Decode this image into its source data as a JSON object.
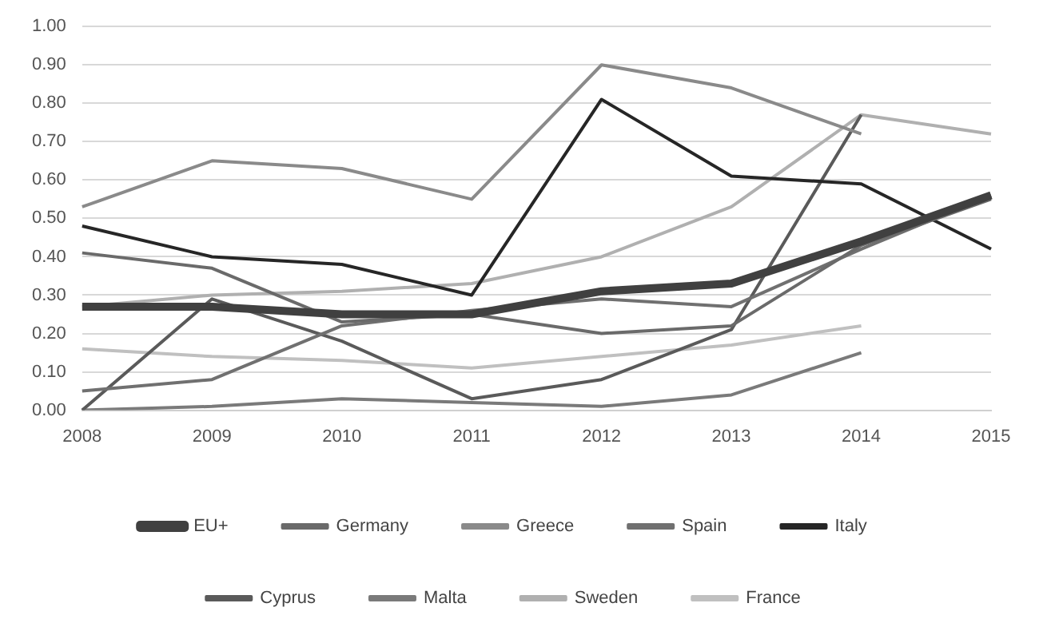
{
  "chart_data": {
    "type": "line",
    "categories": [
      "2008",
      "2009",
      "2010",
      "2011",
      "2012",
      "2013",
      "2014",
      "2015"
    ],
    "series": [
      {
        "name": "EU+",
        "color": "#404040",
        "values": [
          0.27,
          0.27,
          0.25,
          0.25,
          0.31,
          0.33,
          0.44,
          0.56
        ]
      },
      {
        "name": "Germany",
        "color": "#6a6a6a",
        "values": [
          0.41,
          0.37,
          0.23,
          0.25,
          0.2,
          0.22,
          0.43,
          0.55
        ]
      },
      {
        "name": "Greece",
        "color": "#8a8a8a",
        "values": [
          0.53,
          0.65,
          0.63,
          0.55,
          0.9,
          0.84,
          0.72,
          null
        ]
      },
      {
        "name": "Spain",
        "color": "#707070",
        "values": [
          0.05,
          0.08,
          0.22,
          0.26,
          0.29,
          0.27,
          0.42,
          0.56
        ]
      },
      {
        "name": "Italy",
        "color": "#262626",
        "values": [
          0.48,
          0.4,
          0.38,
          0.3,
          0.81,
          0.61,
          0.59,
          0.42
        ]
      },
      {
        "name": "Cyprus",
        "color": "#5a5a5a",
        "values": [
          0.0,
          0.29,
          0.18,
          0.03,
          0.08,
          0.21,
          0.77,
          null
        ]
      },
      {
        "name": "Malta",
        "color": "#7a7a7a",
        "values": [
          0.0,
          0.01,
          0.03,
          0.02,
          0.01,
          0.04,
          0.15,
          null
        ]
      },
      {
        "name": "Sweden",
        "color": "#b0b0b0",
        "values": [
          0.27,
          0.3,
          0.31,
          0.33,
          0.4,
          0.53,
          0.77,
          0.72
        ]
      },
      {
        "name": "France",
        "color": "#c0c0c0",
        "values": [
          0.16,
          0.14,
          0.13,
          0.11,
          0.14,
          0.17,
          0.22,
          null
        ]
      }
    ],
    "ylim": [
      0,
      1
    ],
    "yticks": [
      {
        "value": 0,
        "label": "0.00"
      },
      {
        "value": 0.1,
        "label": "0.10"
      },
      {
        "value": 0.2,
        "label": "0.20"
      },
      {
        "value": 0.3,
        "label": "0.30"
      },
      {
        "value": 0.4,
        "label": "0.40"
      },
      {
        "value": 0.5,
        "label": "0.50"
      },
      {
        "value": 0.6,
        "label": "0.60"
      },
      {
        "value": 0.7,
        "label": "0.70"
      },
      {
        "value": 0.8,
        "label": "0.80"
      },
      {
        "value": 0.9,
        "label": "0.90"
      },
      {
        "value": 1,
        "label": "1.00"
      }
    ],
    "grid": "y",
    "legend": "bottom",
    "marker": "none",
    "line_style": "solid"
  }
}
